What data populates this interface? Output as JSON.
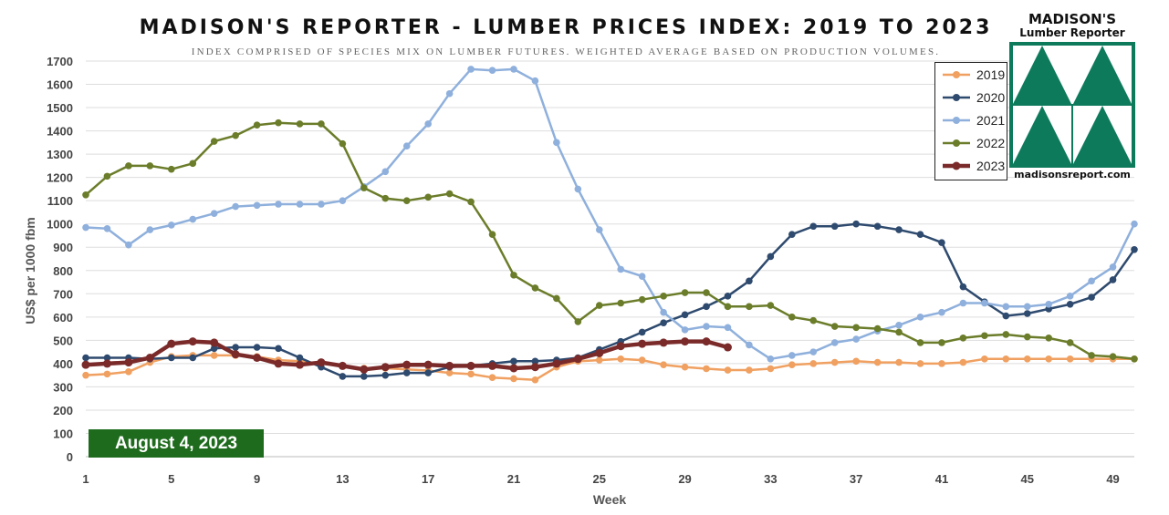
{
  "header": {
    "title": "MADISON'S REPORTER - LUMBER PRICES INDEX: 2019 TO 2023",
    "subtitle": "INDEX COMPRISED OF SPECIES MIX ON LUMBER FUTURES. WEIGHTED AVERAGE BASED ON PRODUCTION VOLUMES."
  },
  "badge": {
    "date": "August 4, 2023",
    "color": "#1e6b1e"
  },
  "logo": {
    "name": "MADISON'S",
    "subtitle": "Lumber Reporter",
    "url": "madisonsreport.com",
    "color": "#0e7a5c"
  },
  "chart_data": {
    "type": "line",
    "xlabel": "Week",
    "ylabel": "US$ per 1000 fbm",
    "xlim": [
      1,
      50
    ],
    "ylim": [
      0,
      1700
    ],
    "x_ticks": [
      1,
      5,
      9,
      13,
      17,
      21,
      25,
      29,
      33,
      37,
      41,
      45,
      49
    ],
    "y_ticks": [
      0,
      100,
      200,
      300,
      400,
      500,
      600,
      700,
      800,
      900,
      1000,
      1100,
      1200,
      1300,
      1400,
      1500,
      1600,
      1700
    ],
    "grid": "horizontal",
    "legend_position": "top-right",
    "series": [
      {
        "name": "2019",
        "color": "#f0a060",
        "x": [
          1,
          2,
          3,
          4,
          5,
          6,
          7,
          8,
          9,
          10,
          11,
          12,
          13,
          14,
          15,
          16,
          17,
          18,
          19,
          20,
          21,
          22,
          23,
          24,
          25,
          26,
          27,
          28,
          29,
          30,
          31,
          32,
          33,
          34,
          35,
          36,
          37,
          38,
          39,
          40,
          41,
          42,
          43,
          44,
          45,
          46,
          47,
          48,
          49,
          50
        ],
        "values": [
          350,
          355,
          365,
          405,
          430,
          435,
          435,
          435,
          430,
          415,
          410,
          400,
          390,
          380,
          380,
          375,
          370,
          360,
          355,
          340,
          335,
          330,
          385,
          410,
          415,
          420,
          415,
          395,
          385,
          378,
          372,
          372,
          378,
          395,
          400,
          405,
          410,
          405,
          405,
          400,
          400,
          405,
          420,
          420,
          420,
          420,
          420,
          420,
          420,
          420
        ]
      },
      {
        "name": "2020",
        "color": "#2e4a6e",
        "x": [
          1,
          2,
          3,
          4,
          5,
          6,
          7,
          8,
          9,
          10,
          11,
          12,
          13,
          14,
          15,
          16,
          17,
          18,
          19,
          20,
          21,
          22,
          23,
          24,
          25,
          26,
          27,
          28,
          29,
          30,
          31,
          32,
          33,
          34,
          35,
          36,
          37,
          38,
          39,
          40,
          41,
          42,
          43,
          44,
          45,
          46,
          47,
          48,
          49,
          50
        ],
        "values": [
          425,
          425,
          425,
          420,
          425,
          425,
          465,
          470,
          470,
          465,
          425,
          385,
          345,
          345,
          350,
          360,
          360,
          385,
          390,
          400,
          410,
          410,
          415,
          425,
          460,
          495,
          535,
          575,
          610,
          645,
          690,
          755,
          860,
          955,
          990,
          990,
          1000,
          990,
          975,
          955,
          920,
          730,
          665,
          605,
          615,
          635,
          655,
          685,
          760,
          890
        ]
      },
      {
        "name": "2021",
        "color": "#8fb0dc",
        "x": [
          1,
          2,
          3,
          4,
          5,
          6,
          7,
          8,
          9,
          10,
          11,
          12,
          13,
          14,
          15,
          16,
          17,
          18,
          19,
          20,
          21,
          22,
          23,
          24,
          25,
          26,
          27,
          28,
          29,
          30,
          31,
          32,
          33,
          34,
          35,
          36,
          37,
          38,
          39,
          40,
          41,
          42,
          43,
          44,
          45,
          46,
          47,
          48,
          49,
          50
        ],
        "values": [
          985,
          980,
          910,
          975,
          995,
          1020,
          1045,
          1075,
          1080,
          1085,
          1085,
          1085,
          1100,
          1160,
          1225,
          1335,
          1430,
          1560,
          1665,
          1660,
          1665,
          1615,
          1350,
          1150,
          975,
          805,
          775,
          620,
          545,
          560,
          555,
          480,
          420,
          435,
          450,
          490,
          505,
          540,
          565,
          600,
          620,
          660,
          660,
          645,
          645,
          655,
          690,
          755,
          815,
          1000
        ]
      },
      {
        "name": "2022",
        "color": "#6b7d2a",
        "x": [
          1,
          2,
          3,
          4,
          5,
          6,
          7,
          8,
          9,
          10,
          11,
          12,
          13,
          14,
          15,
          16,
          17,
          18,
          19,
          20,
          21,
          22,
          23,
          24,
          25,
          26,
          27,
          28,
          29,
          30,
          31,
          32,
          33,
          34,
          35,
          36,
          37,
          38,
          39,
          40,
          41,
          42,
          43,
          44,
          45,
          46,
          47,
          48,
          49,
          50
        ],
        "values": [
          1125,
          1205,
          1250,
          1250,
          1235,
          1260,
          1355,
          1380,
          1425,
          1435,
          1430,
          1430,
          1345,
          1155,
          1110,
          1100,
          1115,
          1130,
          1095,
          955,
          780,
          725,
          680,
          580,
          650,
          660,
          675,
          690,
          705,
          705,
          645,
          645,
          650,
          600,
          585,
          560,
          555,
          550,
          535,
          490,
          490,
          510,
          520,
          525,
          515,
          510,
          490,
          435,
          430,
          420
        ]
      },
      {
        "name": "2023",
        "color": "#7b2a2a",
        "x": [
          1,
          2,
          3,
          4,
          5,
          6,
          7,
          8,
          9,
          10,
          11,
          12,
          13,
          14,
          15,
          16,
          17,
          18,
          19,
          20,
          21,
          22,
          23,
          24,
          25,
          26,
          27,
          28,
          29,
          30,
          31
        ],
        "values": [
          395,
          400,
          405,
          425,
          485,
          495,
          490,
          440,
          425,
          400,
          395,
          405,
          390,
          375,
          385,
          395,
          395,
          390,
          390,
          390,
          380,
          385,
          400,
          420,
          445,
          475,
          485,
          490,
          495,
          495,
          470
        ]
      }
    ]
  }
}
